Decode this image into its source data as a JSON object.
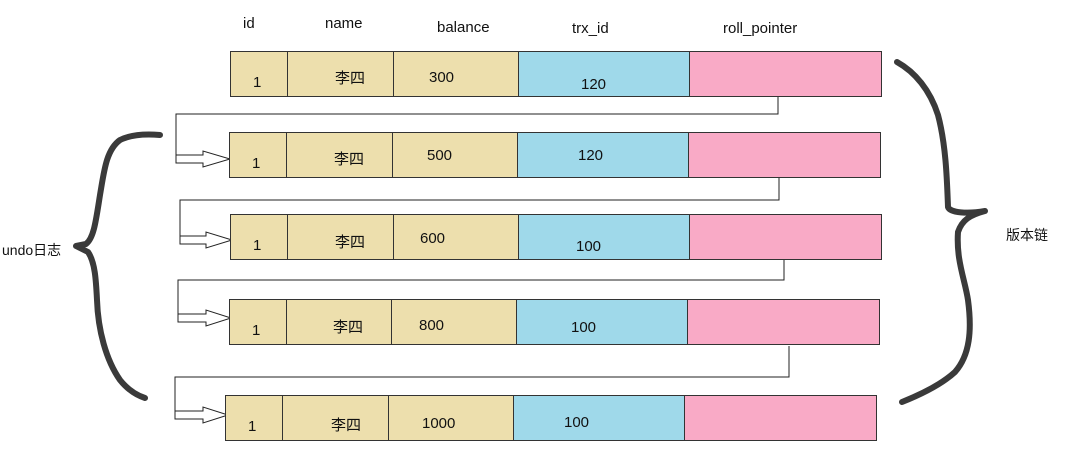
{
  "headers": [
    "id",
    "name",
    "balance",
    "trx_id",
    "roll_pointer"
  ],
  "rows": [
    {
      "id": "1",
      "name": "李四",
      "balance": "300",
      "trx_id": "120",
      "roll_pointer": ""
    },
    {
      "id": "1",
      "name": "李四",
      "balance": "500",
      "trx_id": "120",
      "roll_pointer": ""
    },
    {
      "id": "1",
      "name": "李四",
      "balance": "600",
      "trx_id": "100",
      "roll_pointer": ""
    },
    {
      "id": "1",
      "name": "李四",
      "balance": "800",
      "trx_id": "100",
      "roll_pointer": ""
    },
    {
      "id": "1",
      "name": "李四",
      "balance": "1000",
      "trx_id": "100",
      "roll_pointer": ""
    }
  ],
  "labels": {
    "undo_log": "undo日志",
    "version_chain": "版本链"
  },
  "colors": {
    "record_fields": "#eddfad",
    "trx_id": "#9fd9ea",
    "roll_pointer": "#f9aac6",
    "brace": "#3a3a3a"
  }
}
